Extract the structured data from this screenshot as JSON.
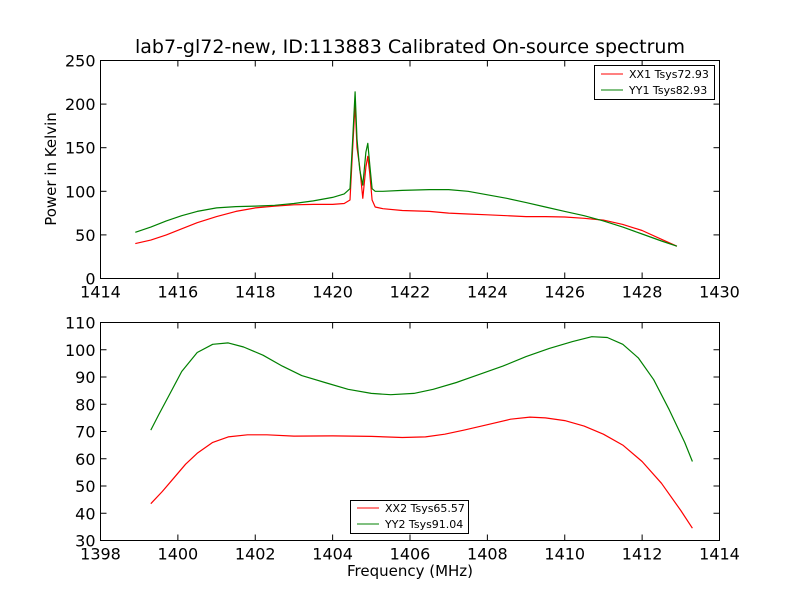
{
  "chart_data": [
    {
      "type": "line",
      "title": "lab7-gl72-new, ID:113883 Calibrated On-source spectrum",
      "xlabel": "",
      "ylabel": "Power in Kelvin",
      "xlim": [
        1414,
        1430
      ],
      "ylim": [
        0,
        250
      ],
      "xticks": [
        1414,
        1416,
        1418,
        1420,
        1422,
        1424,
        1426,
        1428,
        1430
      ],
      "yticks": [
        0,
        50,
        100,
        150,
        200,
        250
      ],
      "grid": false,
      "legend_position": "upper right",
      "series": [
        {
          "name": "XX1 Tsys72.93",
          "color": "#ff0000",
          "points": [
            [
              1414.9,
              40
            ],
            [
              1415.3,
              44
            ],
            [
              1415.7,
              50
            ],
            [
              1416.1,
              57
            ],
            [
              1416.5,
              64
            ],
            [
              1417.0,
              71
            ],
            [
              1417.5,
              77
            ],
            [
              1418.0,
              81
            ],
            [
              1418.5,
              83
            ],
            [
              1419.0,
              84.5
            ],
            [
              1419.5,
              85
            ],
            [
              1420.0,
              85
            ],
            [
              1420.3,
              86
            ],
            [
              1420.45,
              90
            ],
            [
              1420.52,
              150
            ],
            [
              1420.58,
              200
            ],
            [
              1420.63,
              150
            ],
            [
              1420.7,
              128
            ],
            [
              1420.78,
              92
            ],
            [
              1420.86,
              128
            ],
            [
              1420.91,
              140
            ],
            [
              1420.96,
              120
            ],
            [
              1421.02,
              90
            ],
            [
              1421.1,
              82
            ],
            [
              1421.3,
              80
            ],
            [
              1421.8,
              78
            ],
            [
              1422.5,
              77
            ],
            [
              1423.0,
              75
            ],
            [
              1423.5,
              74
            ],
            [
              1424.0,
              73
            ],
            [
              1424.5,
              72
            ],
            [
              1425.0,
              71
            ],
            [
              1425.5,
              71
            ],
            [
              1426.0,
              70.5
            ],
            [
              1426.5,
              69
            ],
            [
              1427.0,
              67
            ],
            [
              1427.5,
              62
            ],
            [
              1428.0,
              55
            ],
            [
              1428.5,
              45
            ],
            [
              1428.9,
              37
            ]
          ]
        },
        {
          "name": "YY1 Tsys82.93",
          "color": "#008000",
          "points": [
            [
              1414.9,
              53
            ],
            [
              1415.3,
              59
            ],
            [
              1415.7,
              66
            ],
            [
              1416.1,
              72
            ],
            [
              1416.5,
              77
            ],
            [
              1417.0,
              81
            ],
            [
              1417.5,
              82.5
            ],
            [
              1418.0,
              83
            ],
            [
              1418.5,
              84
            ],
            [
              1419.0,
              86
            ],
            [
              1419.5,
              89
            ],
            [
              1420.0,
              93
            ],
            [
              1420.3,
              97
            ],
            [
              1420.45,
              103
            ],
            [
              1420.52,
              160
            ],
            [
              1420.58,
              214
            ],
            [
              1420.63,
              160
            ],
            [
              1420.7,
              125
            ],
            [
              1420.78,
              107
            ],
            [
              1420.86,
              145
            ],
            [
              1420.91,
              155
            ],
            [
              1420.96,
              130
            ],
            [
              1421.02,
              103
            ],
            [
              1421.1,
              100
            ],
            [
              1421.3,
              100
            ],
            [
              1421.8,
              101
            ],
            [
              1422.5,
              102
            ],
            [
              1423.0,
              102
            ],
            [
              1423.5,
              100
            ],
            [
              1424.0,
              96
            ],
            [
              1424.5,
              92
            ],
            [
              1425.0,
              87
            ],
            [
              1425.5,
              82
            ],
            [
              1426.0,
              77
            ],
            [
              1426.5,
              72
            ],
            [
              1427.0,
              66
            ],
            [
              1427.5,
              59
            ],
            [
              1428.0,
              51
            ],
            [
              1428.5,
              43
            ],
            [
              1428.9,
              37
            ]
          ]
        }
      ]
    },
    {
      "type": "line",
      "title": "",
      "xlabel": "Frequency (MHz)",
      "ylabel": "",
      "xlim": [
        1398,
        1414
      ],
      "ylim": [
        30,
        110
      ],
      "xticks": [
        1398,
        1400,
        1402,
        1404,
        1406,
        1408,
        1410,
        1412,
        1414
      ],
      "yticks": [
        30,
        40,
        50,
        60,
        70,
        80,
        90,
        100,
        110
      ],
      "grid": false,
      "legend_position": "lower center",
      "series": [
        {
          "name": "XX2 Tsys65.57",
          "color": "#ff0000",
          "points": [
            [
              1399.3,
              43.5
            ],
            [
              1399.6,
              48
            ],
            [
              1399.9,
              53
            ],
            [
              1400.2,
              58
            ],
            [
              1400.5,
              62
            ],
            [
              1400.9,
              66
            ],
            [
              1401.3,
              68
            ],
            [
              1401.8,
              68.8
            ],
            [
              1402.3,
              68.8
            ],
            [
              1403.0,
              68.3
            ],
            [
              1404.0,
              68.4
            ],
            [
              1405.0,
              68.2
            ],
            [
              1405.8,
              67.8
            ],
            [
              1406.4,
              68
            ],
            [
              1406.9,
              69
            ],
            [
              1407.4,
              70.5
            ],
            [
              1408.0,
              72.5
            ],
            [
              1408.6,
              74.5
            ],
            [
              1409.1,
              75.3
            ],
            [
              1409.5,
              75
            ],
            [
              1410.0,
              74
            ],
            [
              1410.5,
              72
            ],
            [
              1411.0,
              69
            ],
            [
              1411.5,
              65
            ],
            [
              1412.0,
              59
            ],
            [
              1412.5,
              51
            ],
            [
              1413.0,
              41
            ],
            [
              1413.3,
              34.5
            ]
          ]
        },
        {
          "name": "YY2 Tsys91.04",
          "color": "#008000",
          "points": [
            [
              1399.3,
              70.5
            ],
            [
              1399.5,
              76
            ],
            [
              1399.8,
              84
            ],
            [
              1400.1,
              92
            ],
            [
              1400.5,
              99
            ],
            [
              1400.9,
              102
            ],
            [
              1401.3,
              102.5
            ],
            [
              1401.7,
              101
            ],
            [
              1402.2,
              98
            ],
            [
              1402.7,
              94
            ],
            [
              1403.2,
              90.5
            ],
            [
              1403.8,
              88
            ],
            [
              1404.4,
              85.5
            ],
            [
              1405.0,
              84
            ],
            [
              1405.5,
              83.5
            ],
            [
              1406.1,
              84
            ],
            [
              1406.6,
              85.5
            ],
            [
              1407.2,
              88
            ],
            [
              1407.8,
              91
            ],
            [
              1408.4,
              94
            ],
            [
              1409.0,
              97.5
            ],
            [
              1409.6,
              100.5
            ],
            [
              1410.2,
              103
            ],
            [
              1410.7,
              104.8
            ],
            [
              1411.1,
              104.5
            ],
            [
              1411.5,
              102
            ],
            [
              1411.9,
              97
            ],
            [
              1412.3,
              89
            ],
            [
              1412.7,
              78
            ],
            [
              1413.1,
              66
            ],
            [
              1413.3,
              59
            ]
          ]
        }
      ]
    }
  ]
}
